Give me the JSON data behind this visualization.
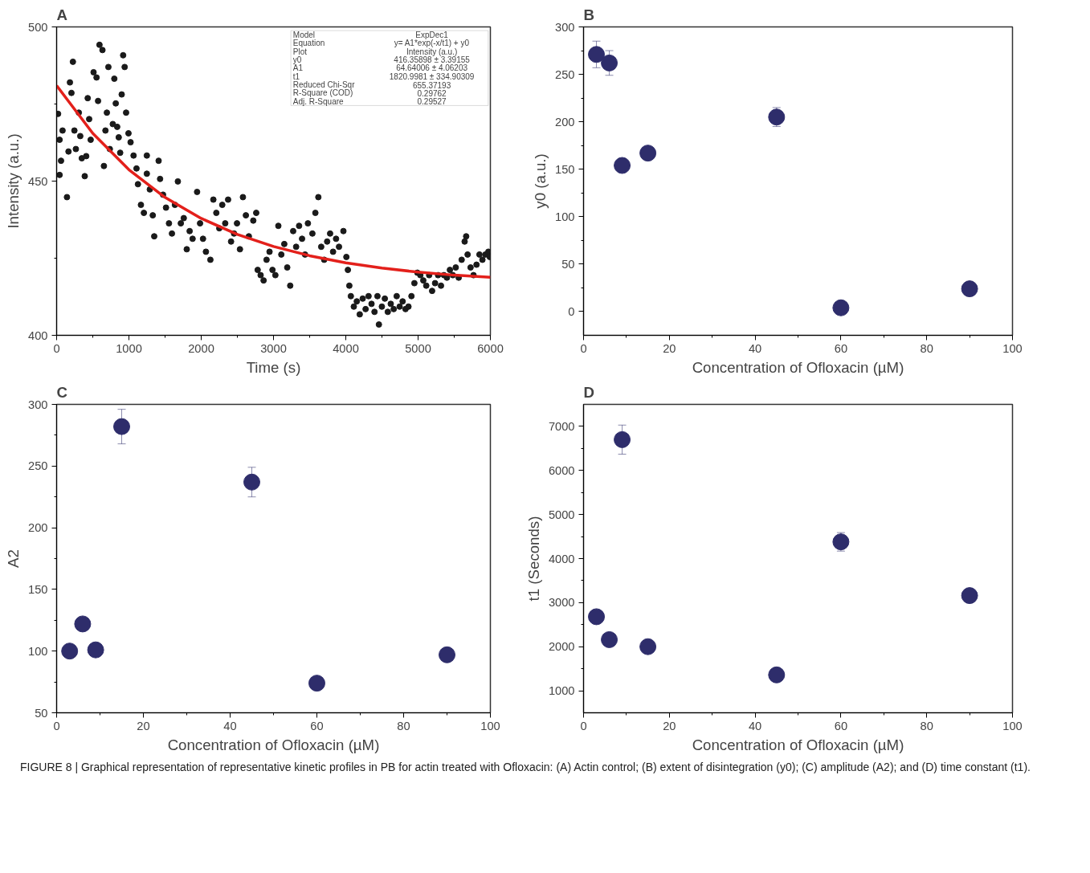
{
  "chart_data": [
    {
      "type": "scatter",
      "title": "A",
      "xlabel": "Time (s)",
      "ylabel": "Intensity (a.u.)",
      "marker": "circle",
      "xlim": [
        0,
        6000
      ],
      "xticks": [
        0,
        1000,
        2000,
        3000,
        4000,
        5000,
        6000
      ],
      "ylim": [
        400,
        500
      ],
      "yticks": [
        400,
        450,
        500
      ],
      "series": [
        {
          "type": "scatter",
          "color": "#1a1a1a",
          "x": [
            20,
            41,
            61,
            41,
            82,
            143,
            164,
            184,
            205,
            225,
            246,
            266,
            307,
            327,
            348,
            389,
            409,
            430,
            450,
            471,
            511,
            552,
            573,
            593,
            634,
            654,
            675,
            695,
            716,
            736,
            777,
            798,
            818,
            838,
            859,
            879,
            900,
            920,
            941,
            961,
            994,
            1023,
            1064,
            1105,
            1125,
            1166,
            1207,
            1248,
            1248,
            1289,
            1330,
            1350,
            1411,
            1431,
            1472,
            1513,
            1554,
            1595,
            1636,
            1677,
            1718,
            1759,
            1800,
            1840,
            1881,
            1943,
            1984,
            2025,
            2065,
            2127,
            2168,
            2209,
            2250,
            2291,
            2332,
            2372,
            2413,
            2454,
            2495,
            2536,
            2577,
            2618,
            2659,
            2720,
            2761,
            2781,
            2822,
            2863,
            2904,
            2945,
            2986,
            3026,
            3067,
            3108,
            3149,
            3190,
            3231,
            3272,
            3313,
            3354,
            3395,
            3436,
            3476,
            3538,
            3579,
            3620,
            3660,
            3701,
            3742,
            3783,
            3824,
            3865,
            3906,
            3967,
            4008,
            4029,
            4049,
            4070,
            4111,
            4152,
            4193,
            4234,
            4274,
            4315,
            4356,
            4397,
            4438,
            4458,
            4499,
            4540,
            4581,
            4622,
            4663,
            4704,
            4745,
            4786,
            4826,
            4867,
            4908,
            4949,
            4990,
            5031,
            5072,
            5113,
            5153,
            5194,
            5235,
            5276,
            5317,
            5358,
            5399,
            5440,
            5481,
            5521,
            5562,
            5603,
            5644,
            5665,
            5685,
            5726,
            5767,
            5808,
            5849,
            5890,
            5931,
            5972,
            5992
          ],
          "values": [
            471.8,
            463.4,
            456.6,
            452,
            466.4,
            444.8,
            459.6,
            482,
            478.6,
            488.7,
            466.4,
            460.4,
            472.2,
            464.6,
            457.4,
            451.6,
            458.1,
            476.9,
            470.1,
            463.4,
            485.3,
            483.6,
            476,
            494.2,
            492.5,
            454.9,
            466.4,
            472.2,
            487,
            460.4,
            468.5,
            483.2,
            475.2,
            467.6,
            464.2,
            459.2,
            478.1,
            490.8,
            487,
            472.2,
            465.5,
            462.6,
            458.3,
            454.1,
            449,
            442.3,
            439.7,
            458.3,
            452.4,
            447.3,
            438.9,
            432.1,
            456.6,
            450.7,
            445.6,
            441.4,
            436.3,
            433,
            442.3,
            449.9,
            436.3,
            438,
            427.9,
            433.8,
            431.3,
            446.5,
            436.3,
            431.3,
            427.1,
            424.5,
            444,
            439.7,
            434.7,
            442.3,
            436.3,
            444,
            430.4,
            433,
            436.3,
            427.9,
            444.8,
            438.9,
            432.1,
            437.2,
            439.7,
            421.2,
            419.5,
            417.8,
            424.5,
            427.1,
            421.2,
            419.5,
            435.5,
            426.2,
            429.6,
            422,
            416.1,
            433.8,
            428.7,
            435.5,
            431.3,
            426.2,
            436.3,
            433,
            439.7,
            444.8,
            428.7,
            424.5,
            430.4,
            433,
            427.1,
            431.3,
            428.7,
            433.8,
            425.4,
            421.2,
            416.1,
            412.7,
            409.3,
            411,
            406.8,
            411.9,
            408.5,
            412.7,
            410.2,
            407.6,
            412.7,
            403.5,
            409.3,
            411.9,
            407.6,
            410.2,
            408.5,
            412.7,
            409.3,
            411,
            408.5,
            409.3,
            412.7,
            416.9,
            420.3,
            419.5,
            417.8,
            416.1,
            419.5,
            414.4,
            416.9,
            419.5,
            416.1,
            419.5,
            418.7,
            421.2,
            419.5,
            422,
            418.7,
            424.5,
            430.4,
            432.1,
            426.2,
            422,
            419.5,
            422.9,
            426.2,
            424.5,
            426.2,
            427.1,
            425.4
          ]
        },
        {
          "type": "line",
          "marker": "none",
          "color": "#e3201b",
          "x": [
            0,
            500,
            1000,
            1500,
            2000,
            2500,
            3000,
            3500,
            4000,
            4500,
            5000,
            5500,
            6000
          ],
          "values": [
            481.0,
            465.5,
            453.7,
            444.7,
            437.9,
            432.7,
            428.8,
            425.8,
            423.5,
            421.8,
            420.5,
            419.5,
            418.8
          ]
        }
      ],
      "annotations": [
        "Model",
        "ExpDec1",
        "Equation",
        "y= A1*exp(-x/t1) + y0",
        "Plot",
        "Intensity (a.u.)",
        "y0",
        "416.35898 ± 3.39155",
        "A1",
        "64.64006 ± 4.06203",
        "t1",
        "1820.9981 ± 334.90309",
        "Reduced Chi-Sqr",
        "655.37193",
        "R-Square (COD)",
        "0.29762",
        "Adj. R-Square",
        "0.29527"
      ]
    },
    {
      "type": "scatter",
      "title": "B",
      "xlabel": "Concentration of Ofloxacin (µM)",
      "ylabel": "y0 (a.u.)",
      "marker": "circle",
      "xlim": [
        0,
        100
      ],
      "xticks": [
        0,
        20,
        40,
        60,
        80,
        100
      ],
      "ylim": [
        -25,
        300
      ],
      "yticks": [
        0,
        50,
        100,
        150,
        200,
        250,
        300
      ],
      "x": [
        3,
        6,
        9,
        15,
        45,
        60,
        90
      ],
      "series": [
        {
          "color": "#2e2d6b",
          "values": [
            271,
            262,
            154,
            167,
            205,
            4,
            24
          ],
          "errors": [
            14,
            13,
            null,
            null,
            10,
            null,
            null
          ]
        }
      ]
    },
    {
      "type": "scatter",
      "title": "C",
      "xlabel": "Concentration of Ofloxacin (µM)",
      "ylabel": "A2",
      "marker": "circle",
      "xlim": [
        0,
        100
      ],
      "xticks": [
        0,
        20,
        40,
        60,
        80,
        100
      ],
      "ylim": [
        50,
        300
      ],
      "yticks": [
        50,
        100,
        150,
        200,
        250,
        300
      ],
      "x": [
        3,
        6,
        9,
        15,
        45,
        60,
        90
      ],
      "series": [
        {
          "color": "#2e2d6b",
          "values": [
            100,
            122,
            101,
            282,
            237,
            74,
            97
          ],
          "errors": [
            null,
            null,
            null,
            14,
            12,
            null,
            null
          ]
        }
      ]
    },
    {
      "type": "scatter",
      "title": "D",
      "xlabel": "Concentration of Ofloxacin (µM)",
      "ylabel": "t1 (Seconds)",
      "marker": "circle",
      "xlim": [
        0,
        100
      ],
      "xticks": [
        0,
        20,
        40,
        60,
        80,
        100
      ],
      "ylim": [
        500,
        7500
      ],
      "yticks": [
        1000,
        2000,
        3000,
        4000,
        5000,
        6000,
        7000
      ],
      "x": [
        3,
        6,
        9,
        15,
        45,
        60,
        90
      ],
      "series": [
        {
          "color": "#2e2d6b",
          "values": [
            2680,
            2160,
            6700,
            2000,
            1360,
            4380,
            3160
          ],
          "errors": [
            null,
            null,
            330,
            null,
            null,
            210,
            null
          ]
        }
      ],
      "annotations": [
        "FIGURE 8 | Graphical representation of representative kinetic profiles in PB for actin treated with Ofloxacin: (A) Actin control; (B) extent of disintegration (y0); (C) amplitude (A2); and (D) time constant (t1)."
      ]
    }
  ]
}
